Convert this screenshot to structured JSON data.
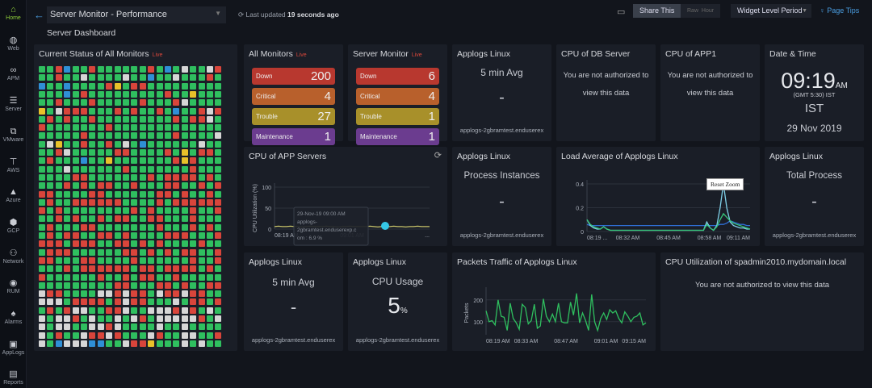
{
  "sidebar": {
    "items": [
      {
        "label": "Home",
        "icon": "home-icon",
        "active": true
      },
      {
        "label": "Web",
        "icon": "globe-icon"
      },
      {
        "label": "APM",
        "icon": "binoculars-icon"
      },
      {
        "label": "Server",
        "icon": "server-icon"
      },
      {
        "label": "VMware",
        "icon": "vmware-icon"
      },
      {
        "label": "AWS",
        "icon": "aws-icon"
      },
      {
        "label": "Azure",
        "icon": "azure-icon"
      },
      {
        "label": "GCP",
        "icon": "gcp-icon"
      },
      {
        "label": "Network",
        "icon": "network-icon"
      },
      {
        "label": "RUM",
        "icon": "rum-icon"
      },
      {
        "label": "Alarms",
        "icon": "bell-icon"
      },
      {
        "label": "AppLogs",
        "icon": "applogs-icon"
      },
      {
        "label": "Reports",
        "icon": "reports-icon"
      }
    ]
  },
  "header": {
    "dashboard_select": "Server Monitor - Performance",
    "subtitle": "Server Dashboard",
    "last_updated_prefix": "Last updated",
    "last_updated_value": "19 seconds ago",
    "share": "Share This",
    "raw": "Raw",
    "hour": "Hour",
    "period": "Widget Level Period",
    "tips": "Page Tips"
  },
  "colors": {
    "up": "#2fbf5f",
    "down": "#d9453b",
    "trouble": "#e8c12a",
    "maintenance": "#2f8fd6",
    "unknown": "#d6d6d6"
  },
  "status_all": {
    "title": "Current Status of All Monitors",
    "live": "Live"
  },
  "all_monitors": {
    "title": "All Monitors",
    "live": "Live",
    "rows": [
      {
        "label": "Down",
        "value": "200",
        "color": "#b8382f"
      },
      {
        "label": "Critical",
        "value": "4",
        "color": "#b8602c"
      },
      {
        "label": "Trouble",
        "value": "27",
        "color": "#a8902a"
      },
      {
        "label": "Maintenance",
        "value": "1",
        "color": "#6b3c8f"
      }
    ]
  },
  "server_monitor": {
    "title": "Server Monitor",
    "live": "Live",
    "rows": [
      {
        "label": "Down",
        "value": "6",
        "color": "#b8382f"
      },
      {
        "label": "Critical",
        "value": "4",
        "color": "#b8602c"
      },
      {
        "label": "Trouble",
        "value": "1",
        "color": "#a8902a"
      },
      {
        "label": "Maintenance",
        "value": "1",
        "color": "#6b3c8f"
      }
    ]
  },
  "w_applogs1": {
    "title": "Applogs Linux",
    "metric": "5 min Avg",
    "value": "-",
    "host": "applogs-2gbramtest.enduserex"
  },
  "w_cpu_db": {
    "title": "CPU of DB Server",
    "msg1": "You are not authorized to",
    "msg2": "view this data"
  },
  "w_cpu_app1": {
    "title": "CPU of APP1",
    "msg1": "You are not authorized to",
    "msg2": "view this data"
  },
  "w_datetime": {
    "title": "Date & Time",
    "time": "09:19",
    "ampm": "AM",
    "tz": "(GMT 5:30) IST",
    "zone": "IST",
    "date": "29 Nov 2019"
  },
  "w_process": {
    "title": "Applogs Linux",
    "metric": "Process Instances",
    "value": "-",
    "host": "applogs-2gbramtest.enduserex"
  },
  "w_total": {
    "title": "Applogs Linux",
    "metric": "Total Process",
    "value": "-",
    "host": "applogs-2gbramtest.enduserex"
  },
  "w_applogs3": {
    "title": "Applogs Linux",
    "metric": "5 min Avg",
    "value": "-",
    "host": "applogs-2gbramtest.enduserex"
  },
  "w_cpuusage": {
    "title": "Applogs Linux",
    "metric": "CPU Usage",
    "value": "5",
    "unit": "%",
    "host": "applogs-2gbramtest.enduserex"
  },
  "w_spadmin": {
    "title": "CPU Utilization of spadmin2010.mydomain.local",
    "msg": "You are not authorized to view this data"
  },
  "chart_data": [
    {
      "id": "cpu_app",
      "title": "CPU of APP Servers",
      "type": "line",
      "ylabel": "CPU Utilization (%)",
      "ylim": [
        0,
        100
      ],
      "yticks": [
        0,
        50,
        100
      ],
      "xticks": [
        "08:19 AM",
        "09:01 AM",
        "..."
      ],
      "color": "#c8c46a",
      "values": [
        6,
        7,
        6,
        6,
        7,
        6,
        6,
        5,
        6,
        7,
        6,
        6,
        6,
        7,
        6,
        6,
        5,
        6,
        6,
        7,
        6,
        6,
        6,
        6,
        7,
        6,
        5,
        6,
        6,
        6,
        7,
        6,
        6,
        5,
        6,
        6,
        7,
        6,
        6,
        6
      ],
      "tooltip": {
        "line1": "29-Nov-19 09:00 AM",
        "line2": "applogs-",
        "line3": "2gbramtest.enduserexp.c",
        "line4": "om : 6.9 %"
      }
    },
    {
      "id": "load",
      "title": "Load Average of Applogs Linux",
      "type": "line",
      "ylim": [
        0,
        0.4
      ],
      "yticks": [
        0,
        0.2,
        0.4
      ],
      "xticks": [
        "08:19 ...",
        "08:32 AM",
        "08:45 AM",
        "08:58 AM",
        "09:11 AM"
      ],
      "reset_zoom": "Reset Zoom",
      "series": [
        {
          "color": "#2f6fd6",
          "values": [
            0.06,
            0.05,
            0.05,
            0.05,
            0.05,
            0.05,
            0.05,
            0.05,
            0.05,
            0.05,
            0.05,
            0.05,
            0.05,
            0.05,
            0.05,
            0.05,
            0.05,
            0.05,
            0.05,
            0.05,
            0.05,
            0.05,
            0.05,
            0.05,
            0.05,
            0.05,
            0.05,
            0.05,
            0.05,
            0.05,
            0.05,
            0.05,
            0.05,
            0.05,
            0.05,
            0.05,
            0.05,
            0.05,
            0.05,
            0.05,
            0.06,
            0.06,
            0.07,
            0.09,
            0.08,
            0.07,
            0.06,
            0.06,
            0.05,
            0.05
          ]
        },
        {
          "color": "#7fd0e8",
          "values": [
            0.1,
            0.05,
            0.03,
            0.02,
            0.02,
            0.04,
            0.02,
            0.01,
            0.01,
            0.01,
            0.01,
            0.01,
            0.01,
            0.01,
            0.01,
            0.01,
            0.01,
            0.01,
            0.01,
            0.01,
            0.01,
            0.01,
            0.01,
            0.01,
            0.01,
            0.01,
            0.01,
            0.01,
            0.01,
            0.01,
            0.01,
            0.01,
            0.01,
            0.01,
            0.01,
            0.01,
            0.08,
            0.03,
            0.01,
            0.05,
            0.2,
            0.4,
            0.2,
            0.08,
            0.05,
            0.04,
            0.03,
            0.03,
            0.02,
            0.02
          ]
        },
        {
          "color": "#36c47a",
          "values": [
            0.1,
            0.06,
            0.04,
            0.03,
            0.02,
            0.04,
            0.02,
            0.01,
            0.01,
            0.01,
            0.01,
            0.01,
            0.01,
            0.01,
            0.01,
            0.01,
            0.01,
            0.01,
            0.01,
            0.01,
            0.01,
            0.01,
            0.01,
            0.01,
            0.01,
            0.01,
            0.01,
            0.01,
            0.01,
            0.01,
            0.01,
            0.01,
            0.01,
            0.01,
            0.01,
            0.01,
            0.06,
            0.03,
            0.01,
            0.04,
            0.1,
            0.15,
            0.12,
            0.09,
            0.07,
            0.06,
            0.05,
            0.04,
            0.03,
            0.02
          ]
        }
      ]
    },
    {
      "id": "packets",
      "title": "Packets Traffic of Applogs Linux",
      "type": "line",
      "ylabel": "Packets",
      "ylim": [
        40,
        240
      ],
      "yticks": [
        100,
        200
      ],
      "xticks": [
        "08:19 AM",
        "08:33 AM",
        "08:47 AM",
        "09:01 AM",
        "09:15 AM"
      ],
      "color": "#2fbf5f",
      "values": [
        150,
        100,
        105,
        85,
        200,
        125,
        120,
        60,
        185,
        115,
        95,
        65,
        180,
        165,
        90,
        105,
        180,
        70,
        80,
        205,
        125,
        100,
        135,
        100,
        185,
        100,
        95,
        95,
        190,
        130,
        230,
        95,
        140,
        105,
        60,
        225,
        100,
        60,
        115,
        140,
        110,
        155,
        140,
        150,
        115,
        95,
        145,
        125,
        100,
        120,
        125,
        140,
        85,
        95
      ]
    }
  ]
}
